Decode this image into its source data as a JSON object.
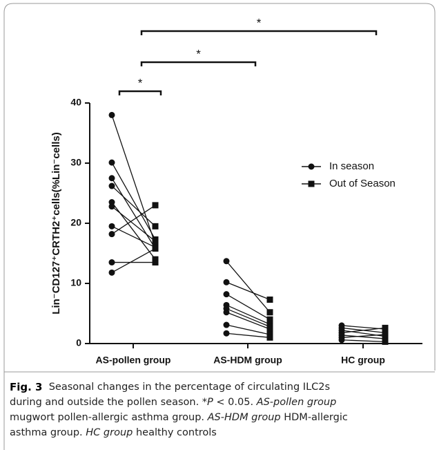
{
  "chart_data": {
    "type": "paired-dot",
    "ylabel": "Lin⁻CD127⁺CRTH2⁺cells(%Lin⁻cells)",
    "categories": [
      "AS-pollen group",
      "AS-HDM group",
      "HC group"
    ],
    "ylim": [
      0,
      40
    ],
    "yticks": [
      0,
      10,
      20,
      30,
      40
    ],
    "color": "#111111",
    "legend": "right",
    "series": [
      {
        "name": "In season",
        "marker": "circle",
        "values": [
          [
            38,
            30.1,
            27.5,
            26.2,
            23.5,
            22.8,
            19.5,
            18.2,
            13.5,
            11.8
          ],
          [
            13.7,
            10.2,
            8.2,
            6.4,
            5.8,
            5.2,
            3.1,
            1.7
          ],
          [
            3.0,
            2.6,
            2.2,
            1.8,
            1.4,
            1.0,
            0.6
          ]
        ]
      },
      {
        "name": "Out of Season",
        "marker": "square",
        "values": [
          [
            16.5,
            17.3,
            15.8,
            19.5,
            14,
            17,
            16,
            23,
            13.5,
            15.8
          ],
          [
            5.2,
            7.3,
            4.0,
            3.2,
            2.8,
            2.4,
            1.5,
            1.0
          ],
          [
            2.4,
            1.8,
            1.2,
            2.6,
            0.8,
            1.5,
            0.3
          ]
        ]
      }
    ],
    "comparisons": [
      {
        "label": "*"
      },
      {
        "label": "*"
      },
      {
        "label": "*"
      }
    ]
  },
  "caption": {
    "lines": [
      [
        {
          "text": "Fig. 3",
          "style": "bold"
        },
        {
          "text": "  Seasonal changes in the percentage of circulating ILC2s"
        }
      ],
      [
        {
          "text": "during and outside the pollen season. *"
        },
        {
          "text": "P",
          "style": "italic"
        },
        {
          "text": " < 0.05. "
        },
        {
          "text": "AS-pollen group",
          "style": "italic"
        }
      ],
      [
        {
          "text": "mugwort pollen-allergic asthma group. "
        },
        {
          "text": "AS-HDM group",
          "style": "italic"
        },
        {
          "text": " HDM-allergic"
        }
      ],
      [
        {
          "text": "asthma group. "
        },
        {
          "text": "HC group",
          "style": "italic"
        },
        {
          "text": " healthy controls"
        }
      ]
    ]
  }
}
